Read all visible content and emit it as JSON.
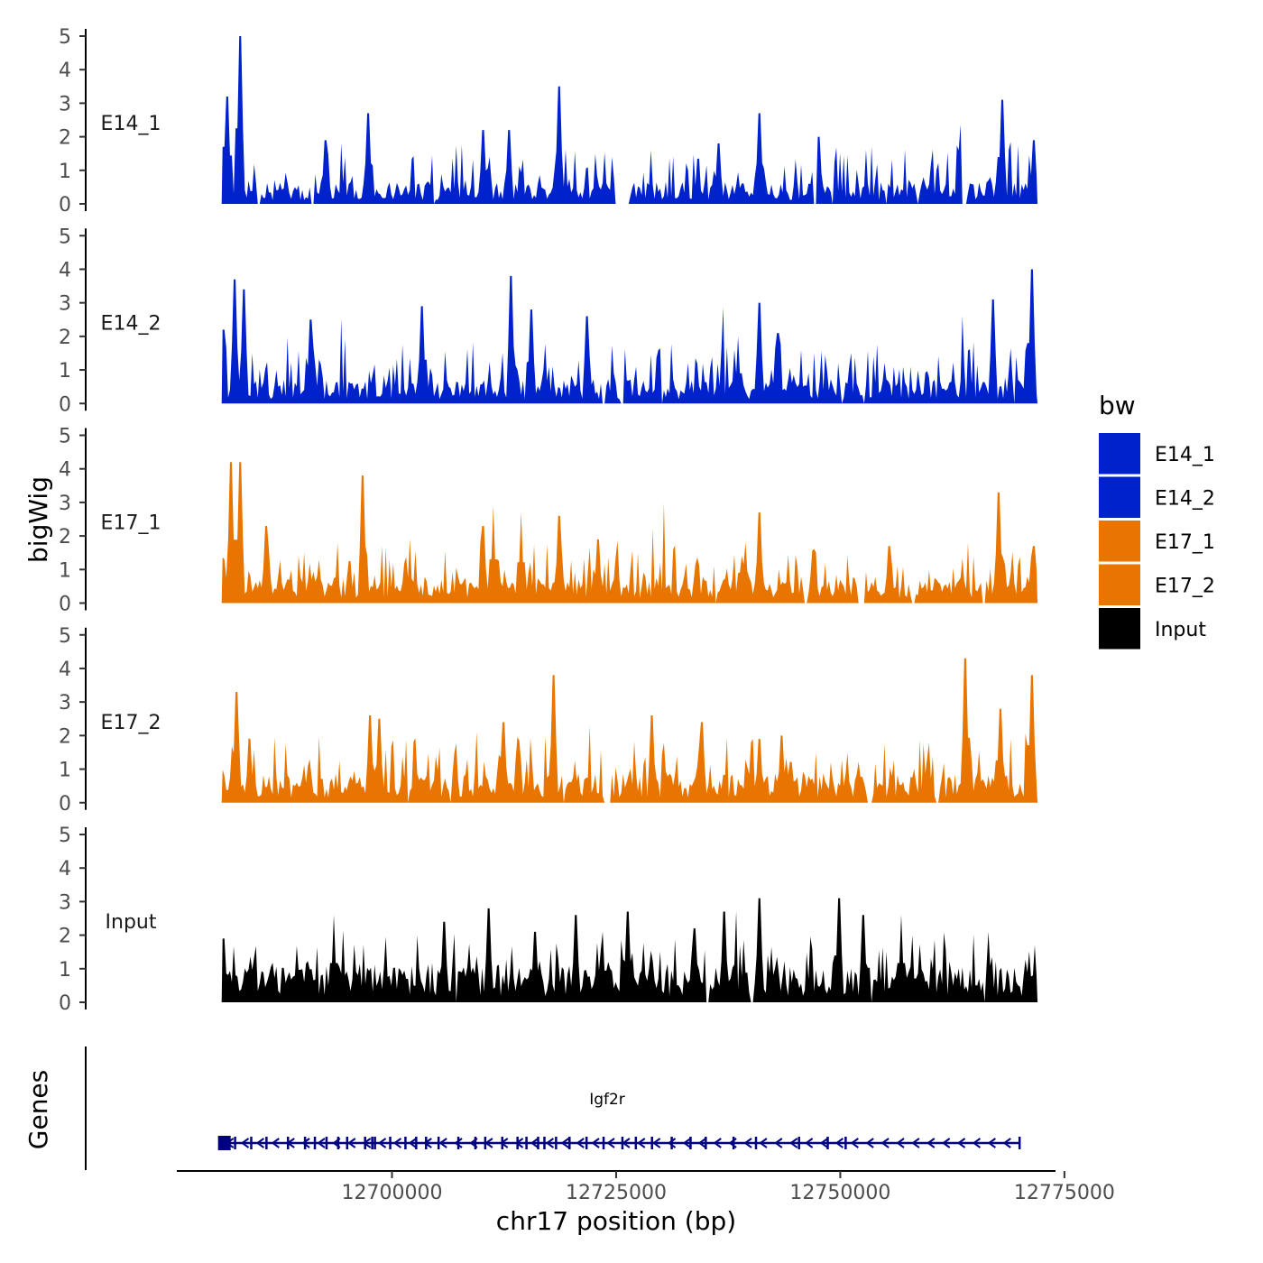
{
  "chart_data": {
    "type": "area",
    "ylabel": "bigWig",
    "xlabel": "chr17 position (bp)",
    "genes_label": "Genes",
    "region": [
      12681000,
      12772000
    ],
    "xlim": [
      12676000,
      12776000
    ],
    "x_ticks": [
      12700000,
      12725000,
      12750000,
      12775000
    ],
    "x_tick_labels": [
      "12700000",
      "12725000",
      "12750000",
      "12775000"
    ],
    "ylim": [
      0,
      5
    ],
    "y_ticks": [
      0,
      1,
      2,
      3,
      4,
      5
    ],
    "y_tick_labels": [
      "0",
      "1",
      "2",
      "3",
      "4",
      "5"
    ],
    "tracks": [
      {
        "name": "E14_1",
        "color": "#0022CC",
        "n_bins": 440,
        "seed": 11,
        "baseline": 0.45,
        "variability": 0.6,
        "gaps": [
          [
            12685000,
            12685300
          ],
          [
            12691000,
            12691250
          ],
          [
            12704500,
            12704700
          ],
          [
            12724800,
            12726400
          ],
          [
            12747000,
            12747300
          ],
          [
            12749000,
            12749300
          ],
          [
            12755000,
            12755300
          ],
          [
            12758500,
            12758800
          ],
          [
            12763500,
            12764200
          ]
        ],
        "peaks": [
          [
            12681200,
            1.7
          ],
          [
            12681700,
            3.2
          ],
          [
            12683000,
            5.0
          ],
          [
            12692600,
            1.9
          ],
          [
            12697400,
            2.7
          ],
          [
            12710200,
            2.2
          ],
          [
            12713000,
            2.2
          ],
          [
            12718600,
            3.5
          ],
          [
            12725000,
            1.8
          ],
          [
            12736400,
            1.8
          ],
          [
            12741000,
            2.7
          ],
          [
            12747600,
            2.0
          ],
          [
            12763300,
            1.6
          ],
          [
            12768000,
            3.1
          ],
          [
            12771600,
            1.9
          ]
        ]
      },
      {
        "name": "E14_2",
        "color": "#0022CC",
        "n_bins": 440,
        "seed": 23,
        "baseline": 0.5,
        "variability": 0.65,
        "gaps": [
          [
            12723300,
            12723800
          ],
          [
            12725500,
            12725800
          ],
          [
            12730000,
            12730300
          ],
          [
            12750000,
            12750300
          ],
          [
            12752500,
            12752800
          ],
          [
            12769300,
            12769600
          ]
        ],
        "peaks": [
          [
            12681200,
            2.2
          ],
          [
            12682500,
            3.7
          ],
          [
            12683500,
            3.4
          ],
          [
            12691000,
            2.5
          ],
          [
            12703400,
            2.9
          ],
          [
            12713300,
            3.8
          ],
          [
            12715600,
            2.8
          ],
          [
            12721700,
            2.6
          ],
          [
            12738600,
            2.0
          ],
          [
            12741000,
            3.0
          ],
          [
            12743000,
            2.1
          ],
          [
            12767000,
            3.1
          ],
          [
            12771300,
            4.0
          ]
        ]
      },
      {
        "name": "E17_1",
        "color": "#E87500",
        "n_bins": 440,
        "seed": 37,
        "baseline": 0.55,
        "variability": 0.6,
        "gaps": [
          [
            12736000,
            12736300
          ],
          [
            12746000,
            12746300
          ],
          [
            12752000,
            12752700
          ],
          [
            12758000,
            12758300
          ],
          [
            12765800,
            12766300
          ]
        ],
        "peaks": [
          [
            12681200,
            1.3
          ],
          [
            12682000,
            4.2
          ],
          [
            12683000,
            4.2
          ],
          [
            12686000,
            2.3
          ],
          [
            12696700,
            3.8
          ],
          [
            12710200,
            2.3
          ],
          [
            12711300,
            2.9
          ],
          [
            12714400,
            2.7
          ],
          [
            12718600,
            2.6
          ],
          [
            12723000,
            1.9
          ],
          [
            12741000,
            2.7
          ],
          [
            12755400,
            1.7
          ],
          [
            12767600,
            3.3
          ],
          [
            12771600,
            1.7
          ]
        ]
      },
      {
        "name": "E17_2",
        "color": "#E87500",
        "n_bins": 440,
        "seed": 51,
        "baseline": 0.6,
        "variability": 0.65,
        "gaps": [
          [
            12701700,
            12701900
          ],
          [
            12706500,
            12706700
          ],
          [
            12719000,
            12719300
          ],
          [
            12723600,
            12724400
          ],
          [
            12753000,
            12753500
          ],
          [
            12760700,
            12761000
          ]
        ],
        "peaks": [
          [
            12681200,
            0.8
          ],
          [
            12682700,
            3.3
          ],
          [
            12697500,
            2.6
          ],
          [
            12698600,
            2.5
          ],
          [
            12712400,
            2.4
          ],
          [
            12718000,
            3.8
          ],
          [
            12729000,
            2.6
          ],
          [
            12734500,
            2.4
          ],
          [
            12741000,
            1.9
          ],
          [
            12743500,
            2.0
          ],
          [
            12764000,
            4.3
          ],
          [
            12767800,
            2.8
          ],
          [
            12771300,
            3.8
          ]
        ]
      },
      {
        "name": "Input",
        "color": "#000000",
        "n_bins": 440,
        "seed": 71,
        "baseline": 0.75,
        "variability": 0.55,
        "gaps": [
          [
            12707000,
            12707300
          ],
          [
            12735000,
            12735300
          ],
          [
            12740000,
            12740300
          ],
          [
            12753300,
            12753600
          ],
          [
            12766000,
            12766300
          ]
        ],
        "peaks": [
          [
            12681200,
            1.9
          ],
          [
            12693500,
            2.6
          ],
          [
            12705800,
            2.4
          ],
          [
            12710800,
            2.8
          ],
          [
            12716000,
            2.1
          ],
          [
            12720500,
            2.6
          ],
          [
            12723500,
            2.1
          ],
          [
            12726300,
            2.7
          ],
          [
            12733800,
            2.2
          ],
          [
            12737000,
            2.7
          ],
          [
            12741000,
            3.1
          ],
          [
            12749800,
            3.1
          ],
          [
            12752600,
            2.6
          ],
          [
            12756800,
            2.6
          ],
          [
            12766500,
            2.1
          ],
          [
            12771700,
            1.7
          ]
        ]
      }
    ],
    "legend": {
      "title": "bw",
      "entries": [
        {
          "label": "E14_1",
          "color": "#0022CC"
        },
        {
          "label": "E14_2",
          "color": "#0022CC"
        },
        {
          "label": "E17_1",
          "color": "#E87500"
        },
        {
          "label": "E17_2",
          "color": "#E87500"
        },
        {
          "label": "Input",
          "color": "#000000"
        }
      ]
    },
    "gene": {
      "name": "Igf2r",
      "color": "#000080",
      "strand": "-",
      "start": 12681300,
      "end": 12770000,
      "exons": [
        12681300,
        12682500,
        12684300,
        12686000,
        12688400,
        12690300,
        12691400,
        12692700,
        12694000,
        12695000,
        12697000,
        12697800,
        12698100,
        12699800,
        12701500,
        12702700,
        12703800,
        12705200,
        12707400,
        12709300,
        12710400,
        12712300,
        12714000,
        12715000,
        12716300,
        12717000,
        12718300,
        12719800,
        12721700,
        12723600,
        12725700,
        12727200,
        12729000,
        12731200,
        12733300,
        12735000,
        12738100,
        12740600,
        12745400,
        12748600,
        12750600,
        12770000
      ]
    }
  }
}
